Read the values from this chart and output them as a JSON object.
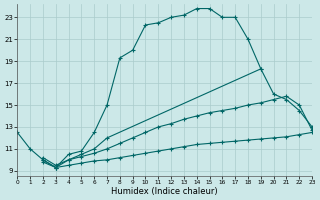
{
  "xlabel": "Humidex (Indice chaleur)",
  "bg_color": "#cce8e8",
  "grid_color": "#aacccc",
  "line_color": "#006666",
  "xlim": [
    0,
    23
  ],
  "ylim": [
    8.5,
    24.2
  ],
  "xticks": [
    0,
    1,
    2,
    3,
    4,
    5,
    6,
    7,
    8,
    9,
    10,
    11,
    12,
    13,
    14,
    15,
    16,
    17,
    18,
    19,
    20,
    21,
    22,
    23
  ],
  "yticks": [
    9,
    11,
    13,
    15,
    17,
    19,
    21,
    23
  ],
  "curve_a_x": [
    0,
    1,
    2,
    3,
    4,
    5,
    6,
    7,
    8,
    9,
    10,
    11,
    12,
    13,
    14,
    15,
    16,
    17,
    18,
    19
  ],
  "curve_a_y": [
    12.5,
    11.0,
    10.0,
    9.3,
    10.5,
    10.8,
    12.5,
    15.0,
    19.3,
    20.0,
    22.3,
    22.5,
    23.0,
    23.2,
    23.8,
    23.8,
    23.0,
    23.0,
    21.0,
    18.3
  ],
  "curve_b_x": [
    2,
    3,
    4,
    5,
    6,
    7,
    19,
    20,
    21,
    22,
    23
  ],
  "curve_b_y": [
    10.0,
    9.3,
    10.0,
    10.5,
    11.0,
    12.0,
    18.3,
    16.0,
    15.5,
    14.5,
    13.0
  ],
  "curve_c_x": [
    2,
    3,
    4,
    5,
    6,
    7,
    8,
    9,
    10,
    11,
    12,
    13,
    14,
    15,
    16,
    17,
    18,
    19,
    20,
    21,
    22,
    23
  ],
  "curve_c_y": [
    10.2,
    9.5,
    10.0,
    10.3,
    10.6,
    11.0,
    11.5,
    12.0,
    12.5,
    13.0,
    13.3,
    13.7,
    14.0,
    14.3,
    14.5,
    14.7,
    15.0,
    15.2,
    15.5,
    15.8,
    15.0,
    12.7
  ],
  "curve_d_x": [
    2,
    3,
    4,
    5,
    6,
    7,
    8,
    9,
    10,
    11,
    12,
    13,
    14,
    15,
    16,
    17,
    18,
    19,
    20,
    21,
    22,
    23
  ],
  "curve_d_y": [
    9.8,
    9.3,
    9.5,
    9.7,
    9.9,
    10.0,
    10.2,
    10.4,
    10.6,
    10.8,
    11.0,
    11.2,
    11.4,
    11.5,
    11.6,
    11.7,
    11.8,
    11.9,
    12.0,
    12.1,
    12.3,
    12.5
  ]
}
